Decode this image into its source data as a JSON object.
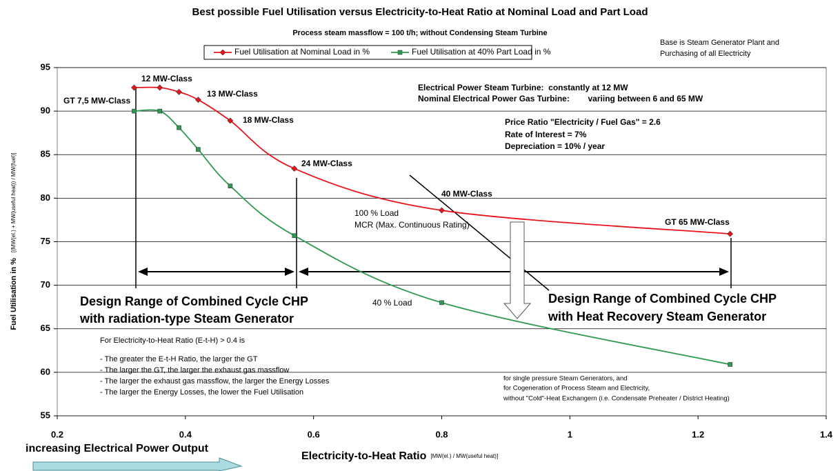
{
  "chart_data": {
    "type": "line",
    "title": "Best possible Fuel Utilisation versus Electricity-to-Heat Ratio at Nominal Load and Part Load",
    "subtitle": "Process steam massflow = 100 t/h; without Condensing Steam Turbine",
    "x_label": "Electricity-to-Heat Ratio",
    "x_label_unit": "[MW(el.) / MW(useful heat)]",
    "y_label": "Fuel Utilisation in %",
    "y_label_unit": "[(MW(el.) + MW(useful heat)) / MW(fuel)]",
    "x": [
      0.32,
      0.36,
      0.39,
      0.42,
      0.47,
      0.57,
      0.8,
      1.25
    ],
    "series": [
      {
        "name": "Fuel Utilisation at Nominal Load in %",
        "color": "#e8141b",
        "marker": "diamond",
        "values": [
          92.7,
          92.7,
          92.2,
          91.3,
          88.9,
          83.4,
          78.6,
          75.9
        ]
      },
      {
        "name": "Fuel Utilisation at 40% Part Load in %",
        "color": "#2e9a4f",
        "marker": "square",
        "values": [
          90.0,
          90.0,
          88.1,
          85.6,
          81.4,
          75.7,
          68.0,
          60.9
        ]
      }
    ],
    "xlim": [
      0.2,
      1.4
    ],
    "xticks": [
      0.2,
      0.4,
      0.6,
      0.8,
      1,
      1.2,
      1.4
    ],
    "ylim": [
      55,
      95
    ],
    "yticks": [
      55,
      60,
      65,
      70,
      75,
      80,
      85,
      90,
      95
    ],
    "grid": true,
    "legend": "top",
    "point_labels": [
      "GT 7,5 MW-Class",
      "12 MW-Class",
      "13 MW-Class",
      "18 MW-Class",
      "24 MW-Class",
      "40 MW-Class",
      "GT 65 MW-Class"
    ],
    "annotations": [
      "Base is Steam Generator Plant and",
      "Purchasing of all Electricity",
      "Electrical Power Steam Turbine:  constantly at 12 MW",
      "Nominal Electrical Power Gas Turbine:        variing between 6 and 65 MW",
      "Price Ratio \"Electricity / Fuel Gas\" = 2.6",
      "Rate of Interest = 7%",
      "Depreciation = 10% / year",
      "100 % Load",
      "MCR (Max. Continuous Rating)",
      "40 % Load",
      "Design Range of Combined Cycle CHP",
      "with radiation-type Steam Generator",
      "Design Range of Combined Cycle CHP",
      "with Heat Recovery Steam Generator",
      "For Electricity-to-Heat Ratio (E-t-H) > 0.4 is",
      "- The greater the E-t-H Ratio, the larger the GT",
      "- The larger the GT, the larger the exhaust gas massflow",
      "- The larger the exhaust gas massflow, the larger the Energy Losses",
      "- The larger the Energy Losses, the lower the Fuel Utilisation",
      "for single pressure Steam Generators, and",
      "for Cogeneration of Process Steam and Electricity,",
      "without \"Cold\"-Heat Exchangern (i.e. Condensate Preheater / District Heating)",
      "increasing Electrical Power Output"
    ]
  }
}
